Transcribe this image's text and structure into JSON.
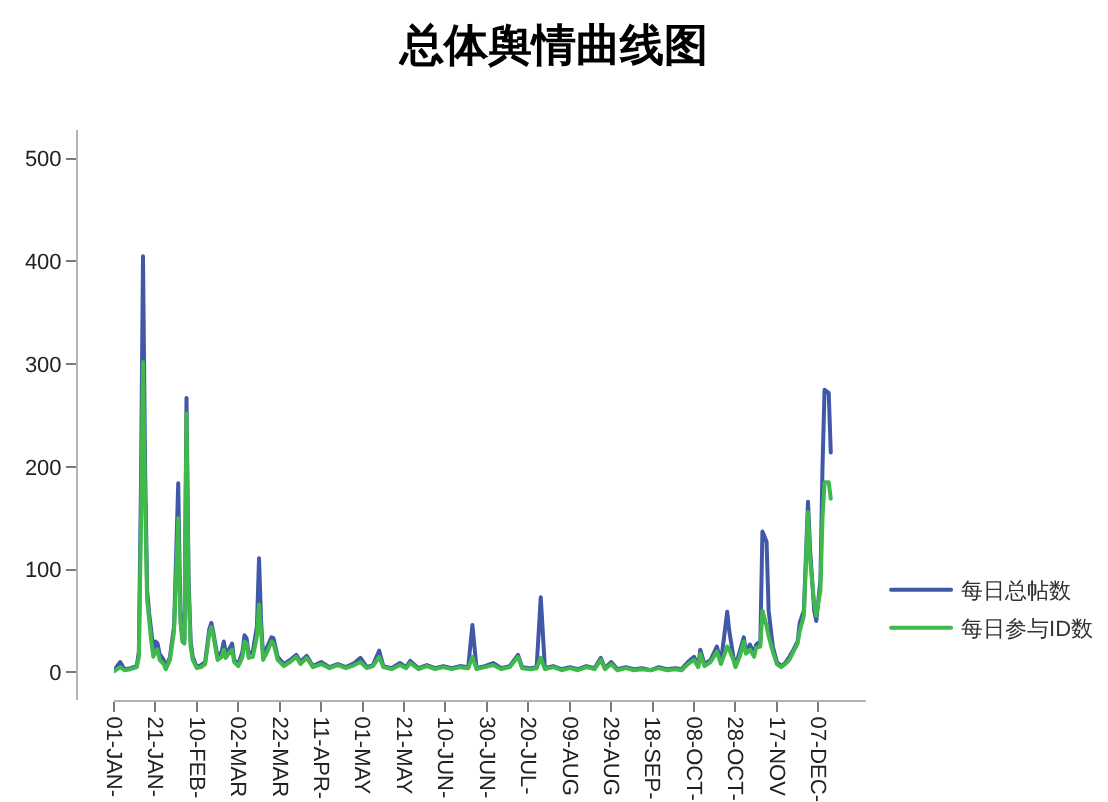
{
  "chart_data": {
    "type": "line",
    "title": "总体舆情曲线图",
    "x": [
      "--01-01",
      "--01-04",
      "--01-06",
      "--01-09",
      "--01-12",
      "--01-13",
      "--01-14",
      "--01-15",
      "--01-16",
      "--01-17",
      "--01-18",
      "--01-19",
      "--01-20",
      "--01-21",
      "--01-22",
      "--01-23",
      "--01-25",
      "--01-26",
      "--01-28",
      "--01-30",
      "--02-01",
      "--02-02",
      "--02-03",
      "--02-04",
      "--02-05",
      "--02-06",
      "--02-07",
      "--02-08",
      "--02-10",
      "--02-12",
      "--02-14",
      "--02-16",
      "--02-17",
      "--02-18",
      "--02-20",
      "--02-22",
      "--02-23",
      "--02-24",
      "--02-26",
      "--02-27",
      "--02-28",
      "--03-02",
      "--03-04",
      "--03-05",
      "--03-06",
      "--03-07",
      "--03-09",
      "--03-11",
      "--03-12",
      "--03-13",
      "--03-14",
      "--03-16",
      "--03-18",
      "--03-19",
      "--03-21",
      "--03-24",
      "--03-27",
      "--03-30",
      "--04-01",
      "--04-04",
      "--04-07",
      "--04-11",
      "--04-15",
      "--04-19",
      "--04-23",
      "--04-27",
      "--04-30",
      "--05-03",
      "--05-06",
      "--05-09",
      "--05-11",
      "--05-15",
      "--05-19",
      "--05-22",
      "--05-24",
      "--05-28",
      "--06-01",
      "--06-05",
      "--06-09",
      "--06-13",
      "--06-17",
      "--06-21",
      "--06-23",
      "--06-25",
      "--06-29",
      "--07-03",
      "--07-07",
      "--07-11",
      "--07-15",
      "--07-17",
      "--07-21",
      "--07-24",
      "--07-26",
      "--07-28",
      "--08-01",
      "--08-05",
      "--08-09",
      "--08-13",
      "--08-17",
      "--08-21",
      "--08-24",
      "--08-26",
      "--08-29",
      "--09-01",
      "--09-05",
      "--09-09",
      "--09-13",
      "--09-17",
      "--09-21",
      "--09-25",
      "--09-29",
      "--10-02",
      "--10-05",
      "--10-08",
      "--10-10",
      "--10-11",
      "--10-13",
      "--10-16",
      "--10-19",
      "--10-21",
      "--10-24",
      "--10-25",
      "--10-27",
      "--10-28",
      "--10-30",
      "--11-01",
      "--11-02",
      "--11-04",
      "--11-06",
      "--11-07",
      "--11-09",
      "--11-10",
      "--11-12",
      "--11-13",
      "--11-15",
      "--11-17",
      "--11-19",
      "--11-21",
      "--11-23",
      "--11-25",
      "--11-27",
      "--11-28",
      "--11-30",
      "--12-02",
      "--12-03",
      "--12-05",
      "--12-06",
      "--12-08",
      "--12-09",
      "--12-10",
      "--12-12",
      "--12-13"
    ],
    "series": [
      {
        "name": "每日总帖数",
        "color": "#4058a8",
        "values": [
          2,
          10,
          3,
          4,
          6,
          20,
          180,
          405,
          200,
          80,
          57,
          40,
          22,
          30,
          28,
          18,
          12,
          4,
          15,
          45,
          184,
          60,
          35,
          32,
          267,
          90,
          30,
          15,
          5,
          7,
          10,
          42,
          48,
          38,
          15,
          20,
          30,
          18,
          24,
          28,
          12,
          8,
          20,
          36,
          33,
          18,
          20,
          45,
          111,
          50,
          15,
          25,
          34,
          33,
          15,
          8,
          12,
          17,
          10,
          16,
          6,
          10,
          5,
          8,
          5,
          9,
          14,
          5,
          7,
          21,
          6,
          4,
          9,
          5,
          11,
          4,
          7,
          4,
          6,
          4,
          6,
          5,
          46,
          4,
          6,
          9,
          4,
          6,
          17,
          5,
          4,
          5,
          73,
          4,
          6,
          3,
          5,
          3,
          6,
          4,
          14,
          4,
          10,
          3,
          5,
          3,
          4,
          2,
          5,
          3,
          4,
          3,
          10,
          15,
          6,
          22,
          8,
          12,
          25,
          10,
          59,
          40,
          15,
          6,
          20,
          34,
          20,
          27,
          18,
          27,
          30,
          137,
          127,
          60,
          25,
          10,
          6,
          9,
          15,
          22,
          30,
          48,
          60,
          166,
          120,
          60,
          50,
          90,
          200,
          275,
          272,
          214
        ]
      },
      {
        "name": "每日参与ID数",
        "color": "#3fb84c",
        "values": [
          1,
          5,
          2,
          3,
          5,
          15,
          140,
          302,
          170,
          70,
          50,
          30,
          15,
          20,
          22,
          12,
          8,
          3,
          12,
          40,
          150,
          50,
          30,
          28,
          252,
          80,
          25,
          12,
          4,
          5,
          8,
          38,
          44,
          35,
          12,
          15,
          22,
          14,
          20,
          22,
          10,
          6,
          15,
          30,
          28,
          14,
          15,
          35,
          66,
          40,
          12,
          20,
          30,
          28,
          12,
          6,
          10,
          15,
          8,
          14,
          5,
          8,
          4,
          7,
          4,
          7,
          10,
          4,
          6,
          15,
          5,
          3,
          7,
          4,
          9,
          3,
          6,
          3,
          5,
          3,
          5,
          4,
          15,
          3,
          5,
          7,
          3,
          5,
          15,
          4,
          3,
          4,
          14,
          3,
          5,
          2,
          4,
          2,
          5,
          3,
          12,
          3,
          8,
          2,
          4,
          2,
          3,
          2,
          4,
          2,
          3,
          2,
          8,
          12,
          5,
          18,
          6,
          10,
          20,
          8,
          25,
          22,
          12,
          5,
          15,
          30,
          18,
          22,
          15,
          24,
          25,
          60,
          45,
          35,
          20,
          8,
          5,
          8,
          12,
          20,
          28,
          40,
          55,
          156,
          110,
          67,
          55,
          80,
          150,
          185,
          185,
          169
        ]
      }
    ],
    "xlim": [
      "--01-01",
      "--12-30"
    ],
    "xticks": [
      {
        "value": "--01-01",
        "label": "01-JAN-"
      },
      {
        "value": "--01-21",
        "label": "21-JAN-"
      },
      {
        "value": "--02-10",
        "label": "10-FEB-"
      },
      {
        "value": "--03-02",
        "label": "02-MAR"
      },
      {
        "value": "--03-22",
        "label": "22-MAR"
      },
      {
        "value": "--04-11",
        "label": "11-APR-"
      },
      {
        "value": "--05-01",
        "label": "01-MAY"
      },
      {
        "value": "--05-21",
        "label": "21-MAY"
      },
      {
        "value": "--06-10",
        "label": "10-JUN-"
      },
      {
        "value": "--06-30",
        "label": "30-JUN-"
      },
      {
        "value": "--07-20",
        "label": "20-JUL-"
      },
      {
        "value": "--08-09",
        "label": "09-AUG"
      },
      {
        "value": "--08-29",
        "label": "29-AUG"
      },
      {
        "value": "--09-18",
        "label": "18-SEP-"
      },
      {
        "value": "--10-08",
        "label": "08-OCT-"
      },
      {
        "value": "--10-28",
        "label": "28-OCT-"
      },
      {
        "value": "--11-17",
        "label": "17-NOV"
      },
      {
        "value": "--12-07",
        "label": "07-DEC-"
      }
    ],
    "ylim": [
      -27,
      528
    ],
    "yticks": [
      0,
      100,
      200,
      300,
      400,
      500
    ],
    "legend": "right",
    "line_style": "solid"
  }
}
